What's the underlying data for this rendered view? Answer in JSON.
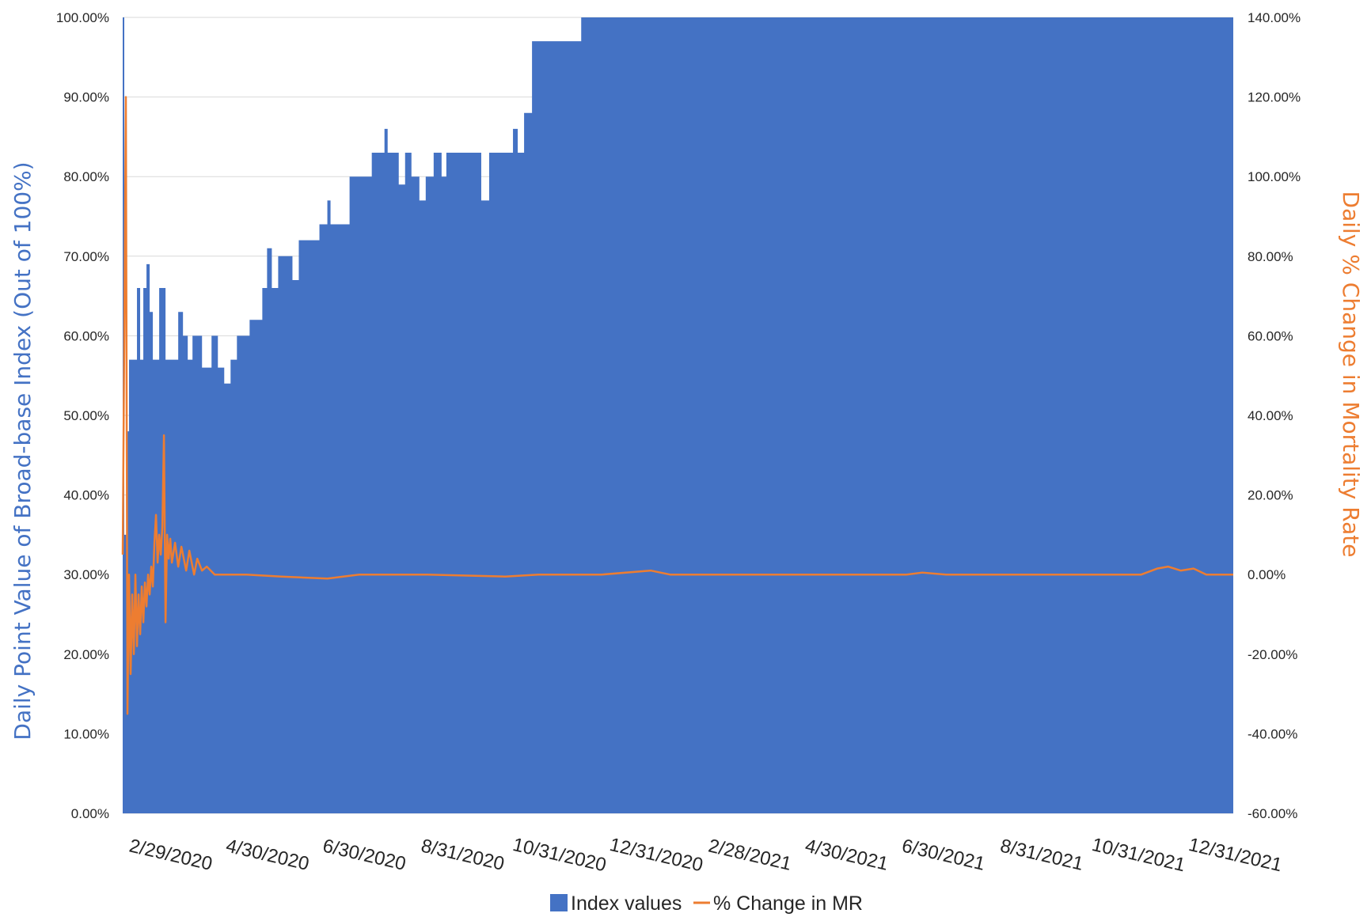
{
  "colors": {
    "index_fill": "#4472C4",
    "mr_line": "#ED7D31",
    "left_axis_title": "#4472C4",
    "right_axis_title": "#ED7D31",
    "gridline": "#D9D9D9"
  },
  "chart_data": {
    "type": "area",
    "ylabel": "Daily Point Value of Broad-base Index (Out of 100%)",
    "y2label": "Daily % Change in Mortality Rate",
    "ylim": [
      0,
      100
    ],
    "y2lim": [
      -60,
      140
    ],
    "xlim": [
      "2020-02-22",
      "2022-01-22"
    ],
    "y_ticks": [
      "0.00%",
      "10.00%",
      "20.00%",
      "30.00%",
      "40.00%",
      "50.00%",
      "60.00%",
      "70.00%",
      "80.00%",
      "90.00%",
      "100.00%"
    ],
    "y2_ticks": [
      "-60.00%",
      "-40.00%",
      "-20.00%",
      "0.00%",
      "20.00%",
      "40.00%",
      "60.00%",
      "80.00%",
      "100.00%",
      "120.00%",
      "140.00%"
    ],
    "x_ticks": [
      {
        "date": "2020-02-29",
        "label": "2/29/2020"
      },
      {
        "date": "2020-04-30",
        "label": "4/30/2020"
      },
      {
        "date": "2020-06-30",
        "label": "6/30/2020"
      },
      {
        "date": "2020-08-31",
        "label": "8/31/2020"
      },
      {
        "date": "2020-10-31",
        "label": "10/31/2020"
      },
      {
        "date": "2020-12-31",
        "label": "12/31/2020"
      },
      {
        "date": "2021-02-28",
        "label": "2/28/2021"
      },
      {
        "date": "2021-04-30",
        "label": "4/30/2021"
      },
      {
        "date": "2021-06-30",
        "label": "6/30/2021"
      },
      {
        "date": "2021-08-31",
        "label": "8/31/2021"
      },
      {
        "date": "2021-10-31",
        "label": "10/31/2021"
      },
      {
        "date": "2021-12-31",
        "label": "12/31/2021"
      }
    ],
    "grid": "horizontal",
    "legend": "bottom",
    "series": [
      {
        "name": "Index values",
        "kind": "area",
        "axis": "left",
        "points": [
          [
            "2020-02-22",
            100
          ],
          [
            "2020-02-23",
            35
          ],
          [
            "2020-02-25",
            48
          ],
          [
            "2020-02-26",
            57
          ],
          [
            "2020-03-01",
            57
          ],
          [
            "2020-03-02",
            66
          ],
          [
            "2020-03-04",
            57
          ],
          [
            "2020-03-06",
            66
          ],
          [
            "2020-03-08",
            69
          ],
          [
            "2020-03-10",
            63
          ],
          [
            "2020-03-12",
            57
          ],
          [
            "2020-03-14",
            57
          ],
          [
            "2020-03-16",
            66
          ],
          [
            "2020-03-19",
            66
          ],
          [
            "2020-03-20",
            57
          ],
          [
            "2020-03-28",
            63
          ],
          [
            "2020-03-31",
            60
          ],
          [
            "2020-04-03",
            57
          ],
          [
            "2020-04-06",
            60
          ],
          [
            "2020-04-10",
            60
          ],
          [
            "2020-04-12",
            56
          ],
          [
            "2020-04-18",
            60
          ],
          [
            "2020-04-22",
            56
          ],
          [
            "2020-04-26",
            54
          ],
          [
            "2020-04-30",
            57
          ],
          [
            "2020-05-04",
            60
          ],
          [
            "2020-05-12",
            62
          ],
          [
            "2020-05-20",
            66
          ],
          [
            "2020-05-23",
            71
          ],
          [
            "2020-05-26",
            66
          ],
          [
            "2020-05-30",
            70
          ],
          [
            "2020-06-08",
            67
          ],
          [
            "2020-06-12",
            72
          ],
          [
            "2020-06-25",
            74
          ],
          [
            "2020-06-30",
            77
          ],
          [
            "2020-07-02",
            74
          ],
          [
            "2020-07-14",
            80
          ],
          [
            "2020-07-28",
            83
          ],
          [
            "2020-08-05",
            86
          ],
          [
            "2020-08-07",
            83
          ],
          [
            "2020-08-14",
            79
          ],
          [
            "2020-08-18",
            83
          ],
          [
            "2020-08-22",
            80
          ],
          [
            "2020-08-27",
            77
          ],
          [
            "2020-08-31",
            80
          ],
          [
            "2020-09-05",
            83
          ],
          [
            "2020-09-10",
            80
          ],
          [
            "2020-09-13",
            83
          ],
          [
            "2020-10-05",
            77
          ],
          [
            "2020-10-10",
            83
          ],
          [
            "2020-10-25",
            86
          ],
          [
            "2020-10-28",
            83
          ],
          [
            "2020-11-01",
            88
          ],
          [
            "2020-11-06",
            97
          ],
          [
            "2020-12-07",
            100
          ],
          [
            "2022-01-22",
            100
          ]
        ]
      },
      {
        "name": "% Change in MR",
        "kind": "line",
        "axis": "right",
        "points": [
          [
            "2020-02-22",
            5
          ],
          [
            "2020-02-23",
            60
          ],
          [
            "2020-02-24",
            120
          ],
          [
            "2020-02-25",
            -35
          ],
          [
            "2020-02-26",
            0
          ],
          [
            "2020-02-27",
            -25
          ],
          [
            "2020-02-28",
            -5
          ],
          [
            "2020-02-29",
            -20
          ],
          [
            "2020-03-01",
            0
          ],
          [
            "2020-03-02",
            -18
          ],
          [
            "2020-03-03",
            -5
          ],
          [
            "2020-03-04",
            -15
          ],
          [
            "2020-03-05",
            -3
          ],
          [
            "2020-03-06",
            -12
          ],
          [
            "2020-03-07",
            -2
          ],
          [
            "2020-03-08",
            -8
          ],
          [
            "2020-03-09",
            0
          ],
          [
            "2020-03-10",
            -5
          ],
          [
            "2020-03-11",
            2
          ],
          [
            "2020-03-12",
            -3
          ],
          [
            "2020-03-13",
            8
          ],
          [
            "2020-03-14",
            15
          ],
          [
            "2020-03-15",
            3
          ],
          [
            "2020-03-16",
            10
          ],
          [
            "2020-03-17",
            5
          ],
          [
            "2020-03-18",
            12
          ],
          [
            "2020-03-19",
            35
          ],
          [
            "2020-03-20",
            -12
          ],
          [
            "2020-03-21",
            10
          ],
          [
            "2020-03-22",
            4
          ],
          [
            "2020-03-23",
            9
          ],
          [
            "2020-03-24",
            3
          ],
          [
            "2020-03-26",
            8
          ],
          [
            "2020-03-28",
            2
          ],
          [
            "2020-03-30",
            7
          ],
          [
            "2020-04-02",
            1
          ],
          [
            "2020-04-04",
            6
          ],
          [
            "2020-04-07",
            0
          ],
          [
            "2020-04-09",
            4
          ],
          [
            "2020-04-12",
            1
          ],
          [
            "2020-04-15",
            2
          ],
          [
            "2020-04-20",
            0
          ],
          [
            "2020-05-10",
            0
          ],
          [
            "2020-06-01",
            -0.5
          ],
          [
            "2020-06-30",
            -1
          ],
          [
            "2020-07-20",
            0
          ],
          [
            "2020-09-01",
            0
          ],
          [
            "2020-10-20",
            -0.5
          ],
          [
            "2020-11-10",
            0
          ],
          [
            "2020-12-20",
            0
          ],
          [
            "2021-01-20",
            1
          ],
          [
            "2021-02-01",
            0
          ],
          [
            "2021-06-30",
            0
          ],
          [
            "2021-07-10",
            0.5
          ],
          [
            "2021-07-25",
            0
          ],
          [
            "2021-11-25",
            0
          ],
          [
            "2021-12-05",
            1.5
          ],
          [
            "2021-12-12",
            2
          ],
          [
            "2021-12-20",
            1
          ],
          [
            "2021-12-28",
            1.5
          ],
          [
            "2022-01-05",
            0
          ],
          [
            "2022-01-22",
            0
          ]
        ]
      }
    ]
  }
}
